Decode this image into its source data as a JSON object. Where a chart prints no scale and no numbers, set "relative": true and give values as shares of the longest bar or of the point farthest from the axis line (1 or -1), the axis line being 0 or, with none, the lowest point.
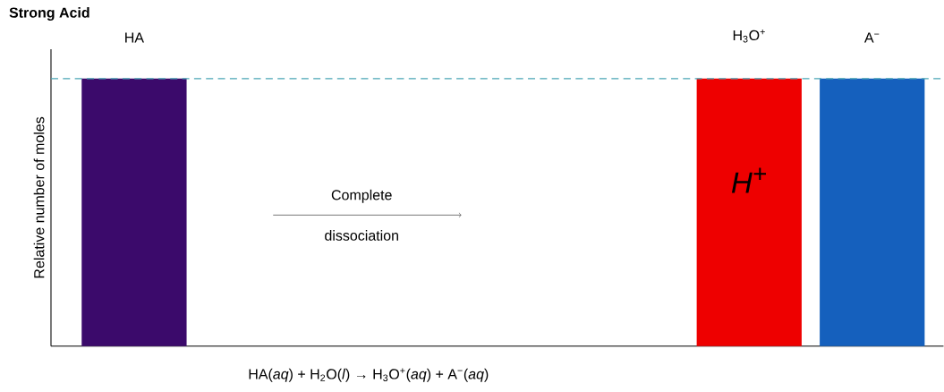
{
  "chart_data": {
    "type": "bar",
    "title": "Strong Acid",
    "ylabel": "Relative number of moles",
    "relative": true,
    "categories": [
      "HA",
      null,
      null,
      null,
      null,
      "H$_{3}$O$^{+}$",
      "A$^{−}$"
    ],
    "values": [
      1,
      null,
      null,
      null,
      null,
      1,
      1
    ],
    "colors": [
      "#3b0a6b",
      null,
      null,
      null,
      null,
      "#ee0000",
      "#1560bd"
    ],
    "ref_lines": [
      {
        "axis": "y",
        "value": 1,
        "color": "#4aa5b5",
        "line_style": "dashed"
      }
    ],
    "annotations": [
      "Complete dissociation",
      "HA(*aq*) + H$_{2}$O(*l*) → H$_{3}$O$^{+}$(*aq*) + A$^{−}$(*aq*)",
      "H$^{+}$"
    ]
  }
}
